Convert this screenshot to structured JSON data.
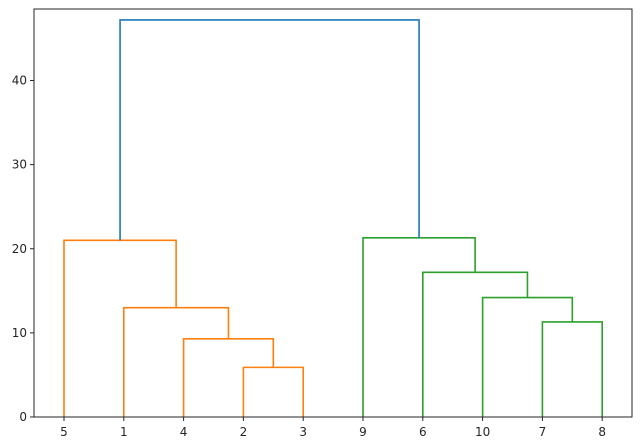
{
  "chart_data": {
    "type": "dendrogram",
    "title": "",
    "xlabel": "",
    "ylabel": "",
    "ylim": [
      0,
      48.5
    ],
    "yticks": [
      0,
      10,
      20,
      30,
      40
    ],
    "grid": false,
    "leaves": [
      "5",
      "1",
      "4",
      "2",
      "3",
      "9",
      "6",
      "10",
      "7",
      "8"
    ],
    "colors": {
      "cluster_1": "#ff7f0e",
      "cluster_2": "#2ca02c",
      "root": "#1f77b4"
    },
    "merges": [
      {
        "left": "leaf:3",
        "right": "leaf:4",
        "height": 5.9,
        "color": "cluster_1"
      },
      {
        "left": "leaf:2",
        "right": "merge:0",
        "height": 9.3,
        "color": "cluster_1"
      },
      {
        "left": "leaf:1",
        "right": "merge:1",
        "height": 13.0,
        "color": "cluster_1"
      },
      {
        "left": "leaf:0",
        "right": "merge:2",
        "height": 21.0,
        "color": "cluster_1"
      },
      {
        "left": "leaf:8",
        "right": "leaf:9",
        "height": 11.3,
        "color": "cluster_2"
      },
      {
        "left": "leaf:7",
        "right": "merge:4",
        "height": 14.2,
        "color": "cluster_2"
      },
      {
        "left": "leaf:6",
        "right": "merge:5",
        "height": 17.2,
        "color": "cluster_2"
      },
      {
        "left": "leaf:5",
        "right": "merge:6",
        "height": 21.3,
        "color": "cluster_2"
      },
      {
        "left": "merge:3",
        "right": "merge:7",
        "height": 47.2,
        "color": "root"
      }
    ]
  }
}
